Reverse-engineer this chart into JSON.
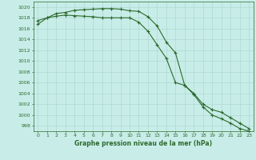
{
  "line1_x": [
    0,
    1,
    2,
    3,
    4,
    5,
    6,
    7,
    8,
    9,
    10,
    11,
    12,
    13,
    14,
    15,
    16,
    17,
    18,
    19,
    20,
    21,
    22,
    23
  ],
  "line1_y": [
    1017.5,
    1018.0,
    1018.8,
    1019.0,
    1019.4,
    1019.5,
    1019.6,
    1019.7,
    1019.7,
    1019.6,
    1019.3,
    1019.2,
    1018.2,
    1016.5,
    1013.5,
    1011.5,
    1005.5,
    1003.8,
    1001.5,
    1000.0,
    999.3,
    998.5,
    997.5,
    997.0
  ],
  "line2_x": [
    0,
    1,
    2,
    3,
    4,
    5,
    6,
    7,
    8,
    9,
    10,
    11,
    12,
    13,
    14,
    15,
    16,
    17,
    18,
    19,
    20,
    21,
    22,
    23
  ],
  "line2_y": [
    1016.8,
    1018.0,
    1018.3,
    1018.5,
    1018.4,
    1018.3,
    1018.2,
    1018.0,
    1018.0,
    1018.0,
    1018.0,
    1017.2,
    1015.5,
    1013.0,
    1010.5,
    1006.0,
    1005.5,
    1004.0,
    1002.0,
    1001.0,
    1000.5,
    999.5,
    998.5,
    997.5
  ],
  "line_color": "#2d6a2d",
  "bg_color": "#c8ede8",
  "grid_color": "#a8d4ce",
  "xlabel": "Graphe pression niveau de la mer (hPa)",
  "ylim": [
    997,
    1021
  ],
  "xlim": [
    -0.5,
    23.5
  ],
  "yticks": [
    998,
    1000,
    1002,
    1004,
    1006,
    1008,
    1010,
    1012,
    1014,
    1016,
    1018,
    1020
  ],
  "xticks": [
    0,
    1,
    2,
    3,
    4,
    5,
    6,
    7,
    8,
    9,
    10,
    11,
    12,
    13,
    14,
    15,
    16,
    17,
    18,
    19,
    20,
    21,
    22,
    23
  ],
  "tick_fontsize": 4.5,
  "xlabel_fontsize": 5.5
}
